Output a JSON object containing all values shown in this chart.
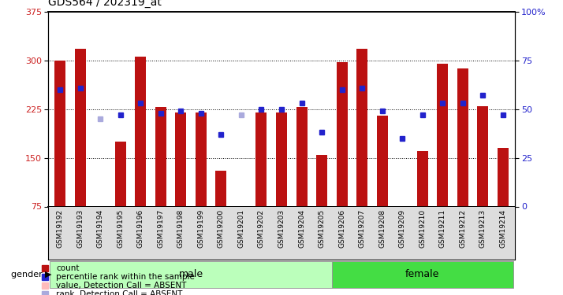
{
  "title": "GDS564 / 202319_at",
  "samples": [
    "GSM19192",
    "GSM19193",
    "GSM19194",
    "GSM19195",
    "GSM19196",
    "GSM19197",
    "GSM19198",
    "GSM19199",
    "GSM19200",
    "GSM19201",
    "GSM19202",
    "GSM19203",
    "GSM19204",
    "GSM19205",
    "GSM19206",
    "GSM19207",
    "GSM19208",
    "GSM19209",
    "GSM19210",
    "GSM19211",
    "GSM19212",
    "GSM19213",
    "GSM19214"
  ],
  "count_values": [
    300,
    318,
    75,
    175,
    306,
    228,
    220,
    220,
    130,
    75,
    220,
    220,
    228,
    155,
    298,
    318,
    215,
    75,
    160,
    295,
    288,
    230,
    165
  ],
  "absent_flags": [
    false,
    false,
    true,
    false,
    false,
    false,
    false,
    false,
    false,
    true,
    false,
    false,
    false,
    false,
    false,
    false,
    false,
    false,
    false,
    false,
    false,
    false,
    false
  ],
  "percentile_values": [
    60,
    61,
    45,
    47,
    53,
    48,
    49,
    48,
    37,
    47,
    50,
    50,
    53,
    38,
    60,
    61,
    49,
    35,
    47,
    53,
    53,
    57,
    47
  ],
  "absent_rank_flags": [
    false,
    false,
    true,
    false,
    false,
    false,
    false,
    false,
    false,
    true,
    false,
    false,
    false,
    false,
    false,
    false,
    false,
    false,
    false,
    false,
    false,
    false,
    false
  ],
  "male_count": 14,
  "female_count": 9,
  "ylim_left": [
    75,
    375
  ],
  "ylim_right": [
    0,
    100
  ],
  "bar_color_present": "#bb1111",
  "bar_color_absent": "#ffbbbb",
  "dot_color_present": "#2222cc",
  "dot_color_absent": "#aaaadd",
  "gender_male_color": "#bbffbb",
  "gender_female_color": "#44dd44",
  "xtick_bg": "#dddddd",
  "title_fontsize": 10,
  "tick_fontsize": 8,
  "label_fontsize": 8
}
